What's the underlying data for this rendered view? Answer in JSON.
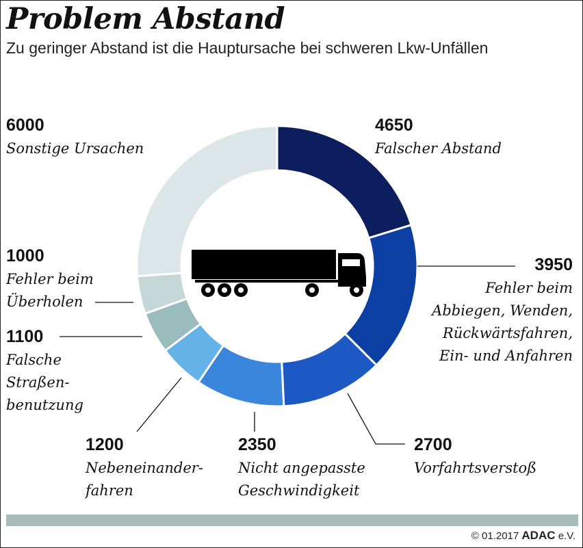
{
  "title": "Problem Abstand",
  "subtitle": "Zu geringer Abstand ist die Hauptursache bei schweren Lkw-Unfällen",
  "chart_data": {
    "type": "pie",
    "style": "donut",
    "title": "Problem Abstand",
    "subtitle": "Zu geringer Abstand ist die Hauptursache bei schweren Lkw-Unfällen",
    "center_icon": "truck-icon",
    "slices": [
      {
        "value": 4650,
        "value_label": "4650",
        "label_lines": [
          "Falscher Abstand"
        ],
        "color": "#0d1e5e"
      },
      {
        "value": 3950,
        "value_label": "3950",
        "label_lines": [
          "Fehler beim",
          "Abbiegen, Wenden,",
          "Rückwärtsfahren,",
          "Ein- und Anfahren"
        ],
        "color": "#0b3fa3"
      },
      {
        "value": 2700,
        "value_label": "2700",
        "label_lines": [
          "Vorfahrtsverstoß"
        ],
        "color": "#1d59c4"
      },
      {
        "value": 2350,
        "value_label": "2350",
        "label_lines": [
          "Nicht angepasste",
          "Geschwindigkeit"
        ],
        "color": "#3a86dc"
      },
      {
        "value": 1200,
        "value_label": "1200",
        "label_lines": [
          "Nebeneinander-",
          "fahren"
        ],
        "color": "#64b2e8"
      },
      {
        "value": 1100,
        "value_label": "1100",
        "label_lines": [
          "Falsche",
          "Straßen-",
          "benutzung"
        ],
        "color": "#9bbcbc"
      },
      {
        "value": 1000,
        "value_label": "1000",
        "label_lines": [
          "Fehler beim",
          "Überholen"
        ],
        "color": "#c6d7d7"
      },
      {
        "value": 6000,
        "value_label": "6000",
        "label_lines": [
          "Sonstige Ursachen"
        ],
        "color": "#dce6e8"
      }
    ]
  },
  "footer": {
    "copyright": "© 01.2017",
    "brand": "ADAC",
    "brand_suffix": "e.V."
  },
  "colors": {
    "line": "#111111",
    "footer_bar": "#a8bcb8"
  }
}
